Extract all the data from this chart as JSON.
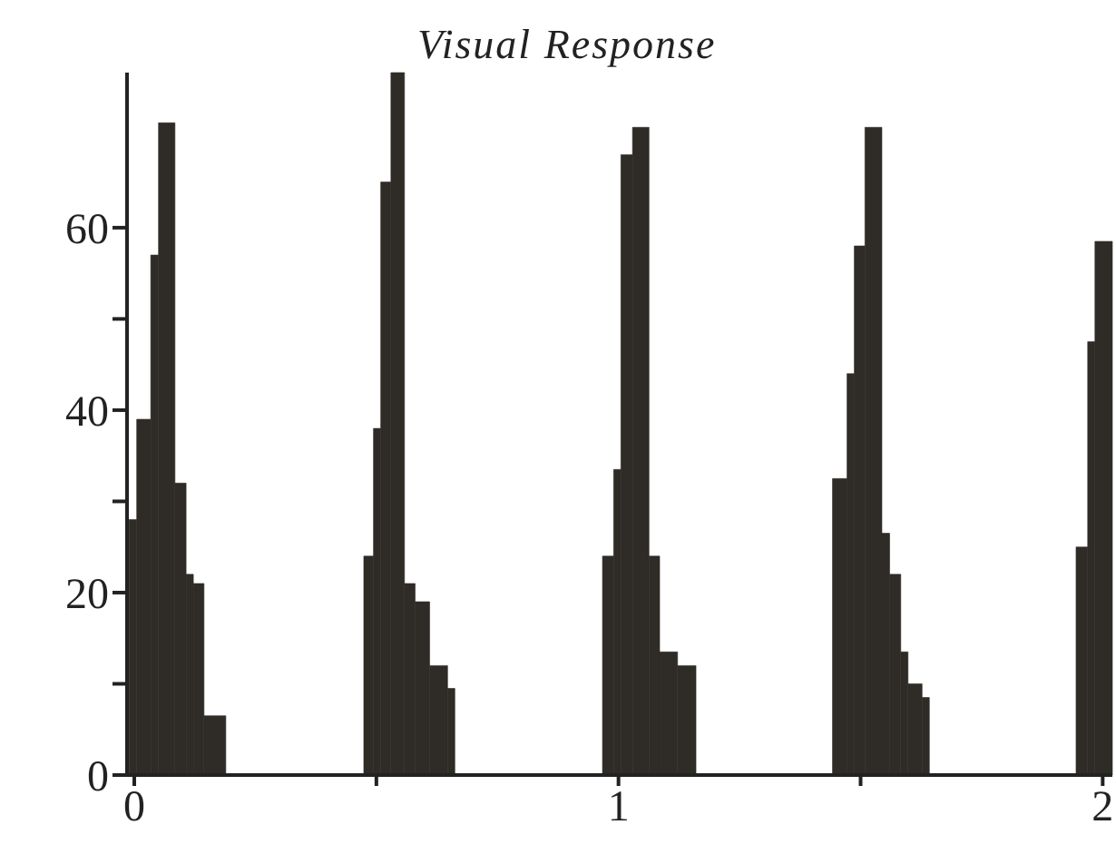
{
  "chart_data": {
    "type": "histogram",
    "title": "Visual Response",
    "bins": [
      -0.011,
      0.005,
      0.034,
      0.05,
      0.084,
      0.107,
      0.122,
      0.144,
      0.189,
      0.474,
      0.494,
      0.509,
      0.53,
      0.558,
      0.58,
      0.61,
      0.647,
      0.662,
      0.967,
      0.99,
      1.005,
      1.029,
      1.063,
      1.085,
      1.122,
      1.16,
      1.442,
      1.472,
      1.487,
      1.509,
      1.544,
      1.56,
      1.583,
      1.598,
      1.627,
      1.642,
      1.945,
      1.969,
      1.984,
      2.02
    ],
    "values": [
      28,
      39,
      57,
      71.5,
      32,
      22,
      21,
      6.5,
      0,
      24,
      38,
      65,
      77,
      21,
      19,
      12,
      9.5,
      0,
      24,
      33.5,
      68,
      71,
      24,
      13.5,
      12,
      0,
      32.5,
      44,
      58,
      71,
      26.5,
      22,
      13.5,
      10,
      8.5,
      0,
      25,
      47.5,
      58.5
    ],
    "color": "#2f2b26",
    "xlim": [
      -0.015,
      2.02
    ],
    "xticks": [
      0,
      {
        "value": 0.5,
        "label": null
      },
      1,
      {
        "value": 1.5,
        "label": null
      },
      2
    ],
    "ylim": [
      0,
      77
    ],
    "yticks": [
      0,
      {
        "value": 10,
        "label": null
      },
      20,
      {
        "value": 30,
        "label": null
      },
      40,
      {
        "value": 50,
        "label": null
      },
      60
    ]
  }
}
